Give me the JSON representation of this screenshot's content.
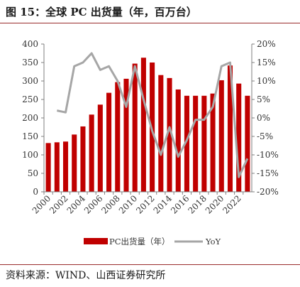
{
  "header": {
    "title": "图 15：全球 PC 出货量（年，百万台）"
  },
  "footer": {
    "source": "资料来源：WIND、山西证券研究所"
  },
  "colors": {
    "bar": "#c00000",
    "line": "#a6a6a6",
    "rule": "#9a2c2c"
  },
  "chart_data": {
    "type": "bar",
    "categories": [
      "2000",
      "2001",
      "2002",
      "2003",
      "2004",
      "2005",
      "2006",
      "2007",
      "2008",
      "2009",
      "2010",
      "2011",
      "2012",
      "2013",
      "2014",
      "2015",
      "2016",
      "2017",
      "2018",
      "2019",
      "2020",
      "2021",
      "2022",
      "2023"
    ],
    "x_tick_labels": [
      "2000",
      "2002",
      "2004",
      "2006",
      "2008",
      "2010",
      "2012",
      "2014",
      "2016",
      "2018",
      "2020",
      "2022"
    ],
    "series": [
      {
        "name": "PC出货量（年）",
        "type": "bar",
        "axis": "left",
        "values": [
          132,
          134,
          136,
          155,
          177,
          209,
          236,
          268,
          297,
          306,
          347,
          363,
          350,
          316,
          308,
          277,
          260,
          260,
          260,
          266,
          302,
          342,
          293,
          260
        ]
      },
      {
        "name": "YoY",
        "type": "line",
        "axis": "right",
        "values": [
          null,
          2.0,
          1.5,
          14.0,
          15.0,
          17.5,
          13.0,
          14.0,
          10.0,
          3.0,
          14.0,
          5.0,
          -3.5,
          -10.0,
          -2.5,
          -10.5,
          -6.0,
          -0.5,
          -0.5,
          3.0,
          14.0,
          15.0,
          -16.0,
          -11.0
        ]
      }
    ],
    "left_axis": {
      "ylim": [
        0,
        400
      ],
      "ticks": [
        0,
        50,
        100,
        150,
        200,
        250,
        300,
        350,
        400
      ]
    },
    "right_axis": {
      "ylim": [
        -20,
        20
      ],
      "ticks": [
        "-20%",
        "-15%",
        "-10%",
        "-5%",
        "0%",
        "5%",
        "10%",
        "15%",
        "20%"
      ]
    },
    "grid": false,
    "legend": {
      "position": "bottom",
      "entries": [
        "PC出货量（年）",
        "YoY"
      ]
    }
  }
}
